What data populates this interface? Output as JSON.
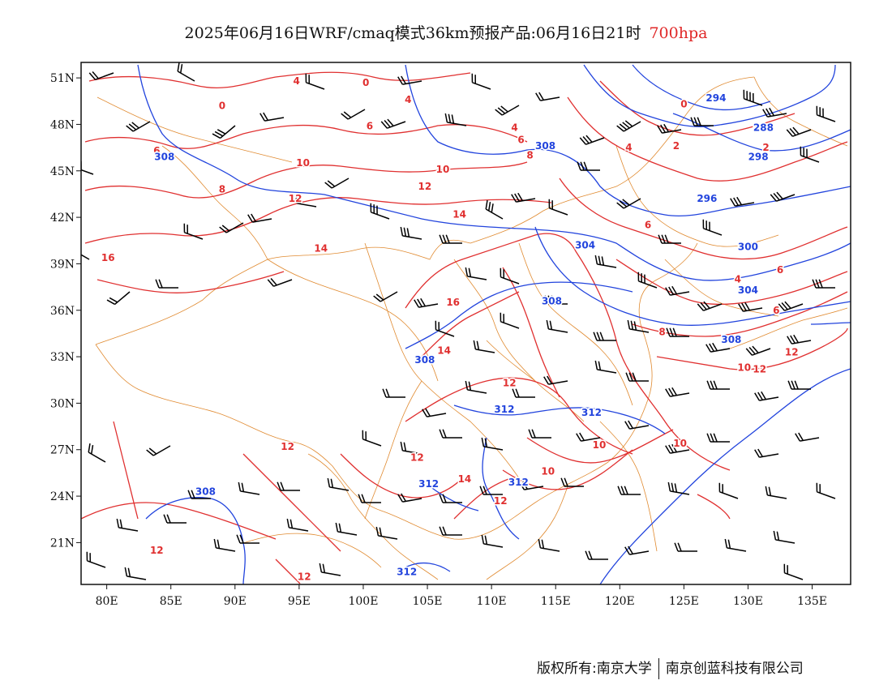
{
  "title": {
    "main": "2025年06月16日WRF/cmaq模式36km预报产品:06月16日21时",
    "level": "700hpa"
  },
  "colors": {
    "height_contour": "#2244dd",
    "temperature_contour": "#e03030",
    "boundary": "#e08a30",
    "wind_barb": "#000000",
    "level_text": "#e02828"
  },
  "axes": {
    "x_labels": [
      "80E",
      "85E",
      "90E",
      "95E",
      "100E",
      "105E",
      "110E",
      "115E",
      "120E",
      "125E",
      "130E",
      "135E"
    ],
    "x_values": [
      80,
      85,
      90,
      95,
      100,
      105,
      110,
      115,
      120,
      125,
      130,
      135
    ],
    "y_labels": [
      "51N",
      "48N",
      "45N",
      "42N",
      "39N",
      "36N",
      "33N",
      "30N",
      "27N",
      "24N",
      "21N"
    ],
    "y_values": [
      51,
      48,
      45,
      42,
      39,
      36,
      33,
      30,
      27,
      24,
      21
    ],
    "lon_range": [
      78,
      138
    ],
    "lat_range": [
      18.3,
      52
    ]
  },
  "height_labels": [
    {
      "text": "308",
      "lon": 84.5,
      "lat": 45.9
    },
    {
      "text": "308",
      "lon": 114.2,
      "lat": 46.6
    },
    {
      "text": "294",
      "lon": 127.5,
      "lat": 49.7
    },
    {
      "text": "288",
      "lon": 131.2,
      "lat": 47.8
    },
    {
      "text": "298",
      "lon": 130.8,
      "lat": 45.9
    },
    {
      "text": "296",
      "lon": 126.8,
      "lat": 43.2
    },
    {
      "text": "304",
      "lon": 117.3,
      "lat": 40.2
    },
    {
      "text": "300",
      "lon": 130.0,
      "lat": 40.1
    },
    {
      "text": "304",
      "lon": 130.0,
      "lat": 37.3
    },
    {
      "text": "308",
      "lon": 114.7,
      "lat": 36.6
    },
    {
      "text": "308",
      "lon": 128.7,
      "lat": 34.1
    },
    {
      "text": "308",
      "lon": 104.8,
      "lat": 32.8
    },
    {
      "text": "312",
      "lon": 111.0,
      "lat": 29.6
    },
    {
      "text": "312",
      "lon": 117.8,
      "lat": 29.4
    },
    {
      "text": "312",
      "lon": 105.1,
      "lat": 24.8
    },
    {
      "text": "312",
      "lon": 112.1,
      "lat": 24.9
    },
    {
      "text": "308",
      "lon": 87.7,
      "lat": 24.3
    },
    {
      "text": "312",
      "lon": 103.4,
      "lat": 19.1
    }
  ],
  "temp_labels": [
    {
      "text": "4",
      "lon": 94.8,
      "lat": 50.8
    },
    {
      "text": "0",
      "lon": 100.2,
      "lat": 50.7
    },
    {
      "text": "0",
      "lon": 89.0,
      "lat": 49.2
    },
    {
      "text": "4",
      "lon": 103.5,
      "lat": 49.6
    },
    {
      "text": "6",
      "lon": 100.5,
      "lat": 47.9
    },
    {
      "text": "4",
      "lon": 111.8,
      "lat": 47.8
    },
    {
      "text": "6",
      "lon": 112.3,
      "lat": 47.0
    },
    {
      "text": "8",
      "lon": 113.0,
      "lat": 46.0
    },
    {
      "text": "6",
      "lon": 83.9,
      "lat": 46.3
    },
    {
      "text": "10",
      "lon": 95.3,
      "lat": 45.5
    },
    {
      "text": "10",
      "lon": 106.2,
      "lat": 45.1
    },
    {
      "text": "12",
      "lon": 104.8,
      "lat": 44.0
    },
    {
      "text": "8",
      "lon": 89.0,
      "lat": 43.8
    },
    {
      "text": "12",
      "lon": 94.7,
      "lat": 43.2
    },
    {
      "text": "14",
      "lon": 107.5,
      "lat": 42.2
    },
    {
      "text": "14",
      "lon": 96.7,
      "lat": 40.0
    },
    {
      "text": "16",
      "lon": 80.1,
      "lat": 39.4
    },
    {
      "text": "0",
      "lon": 125.0,
      "lat": 49.3
    },
    {
      "text": "4",
      "lon": 120.7,
      "lat": 46.5
    },
    {
      "text": "2",
      "lon": 124.4,
      "lat": 46.6
    },
    {
      "text": "2",
      "lon": 131.4,
      "lat": 46.5
    },
    {
      "text": "6",
      "lon": 122.2,
      "lat": 41.5
    },
    {
      "text": "4",
      "lon": 129.2,
      "lat": 38.0
    },
    {
      "text": "6",
      "lon": 132.5,
      "lat": 38.6
    },
    {
      "text": "6",
      "lon": 132.2,
      "lat": 36.0
    },
    {
      "text": "8",
      "lon": 123.3,
      "lat": 34.6
    },
    {
      "text": "16",
      "lon": 107.0,
      "lat": 36.5
    },
    {
      "text": "14",
      "lon": 106.3,
      "lat": 33.4
    },
    {
      "text": "12",
      "lon": 111.4,
      "lat": 31.3
    },
    {
      "text": "12",
      "lon": 133.4,
      "lat": 33.3
    },
    {
      "text": "10",
      "lon": 129.7,
      "lat": 32.3
    },
    {
      "text": "12",
      "lon": 130.9,
      "lat": 32.2
    },
    {
      "text": "10",
      "lon": 118.4,
      "lat": 27.3
    },
    {
      "text": "10",
      "lon": 124.7,
      "lat": 27.4
    },
    {
      "text": "10",
      "lon": 114.4,
      "lat": 25.6
    },
    {
      "text": "12",
      "lon": 94.1,
      "lat": 27.2
    },
    {
      "text": "12",
      "lon": 104.2,
      "lat": 26.5
    },
    {
      "text": "14",
      "lon": 107.9,
      "lat": 25.1
    },
    {
      "text": "12",
      "lon": 110.7,
      "lat": 23.7
    },
    {
      "text": "12",
      "lon": 83.9,
      "lat": 20.5
    },
    {
      "text": "12",
      "lon": 95.4,
      "lat": 18.8
    }
  ],
  "footer": {
    "left": "版权所有:南京大学",
    "right": "南京创蓝科技有限公司"
  }
}
